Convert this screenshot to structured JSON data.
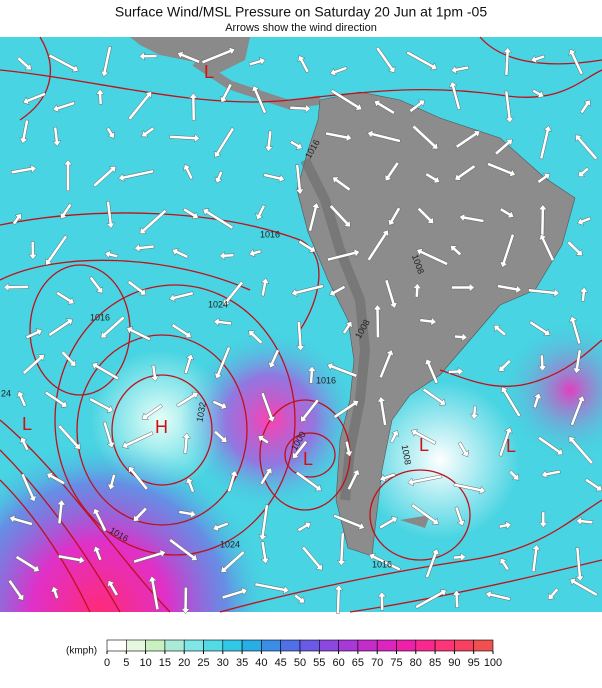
{
  "header": {
    "title": "Surface Wind/MSL Pressure on Saturday 20 Jun at 1pm -05",
    "subtitle": "Arrows show the wind direction"
  },
  "map": {
    "isobar_labels": [
      1016,
      1024,
      1016,
      1032,
      1000,
      1008,
      1024,
      1016,
      1016,
      1016,
      1008,
      1016,
      1008,
      24
    ],
    "pressure_centers": [
      "H",
      "L",
      "L",
      "L",
      "L",
      "L"
    ]
  },
  "colorbar": {
    "unit": "(kmph)",
    "ticks": [
      0,
      5,
      10,
      15,
      20,
      25,
      30,
      35,
      40,
      45,
      50,
      55,
      60,
      65,
      70,
      75,
      80,
      85,
      90,
      95,
      100
    ],
    "colors": [
      "#ffffff",
      "#e6f7e0",
      "#c8f0c0",
      "#a8ecd8",
      "#7ee6e6",
      "#52dbe6",
      "#30c8e6",
      "#28aee6",
      "#3a8ee8",
      "#5070e8",
      "#6a5ae6",
      "#8a48e0",
      "#a838d8",
      "#c42ccc",
      "#dc24c0",
      "#ee20aa",
      "#f82890",
      "#fc3478",
      "#f84060",
      "#f05050"
    ]
  }
}
